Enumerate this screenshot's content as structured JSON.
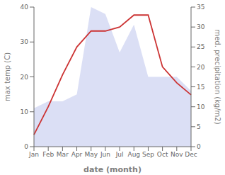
{
  "chart_data": {
    "type": "area",
    "xlabel": "date (month)",
    "ylabel": "max temp (C)",
    "y2label": "med. precipitation (kg/m2)",
    "categories": [
      "Jan",
      "Feb",
      "Mar",
      "Apr",
      "May",
      "Jun",
      "Jul",
      "Aug",
      "Sep",
      "Oct",
      "Nov",
      "Dec"
    ],
    "series": [
      {
        "type": "area",
        "color": "#b0b8e8",
        "values": [
          11,
          13,
          13,
          15,
          40,
          38,
          27,
          35,
          20,
          20,
          20,
          16
        ]
      },
      {
        "type": "line",
        "color": "#cc3333",
        "axis": "y2",
        "values": [
          3,
          10,
          18,
          25,
          29,
          29,
          30,
          33,
          33,
          20,
          16,
          13
        ]
      }
    ],
    "ylim": [
      0,
      40
    ],
    "yticks": [
      0,
      10,
      20,
      30,
      40
    ],
    "y2lim": [
      0,
      35
    ],
    "y2ticks": [
      0,
      5,
      10,
      15,
      20,
      25,
      30,
      35
    ],
    "grid": false
  }
}
